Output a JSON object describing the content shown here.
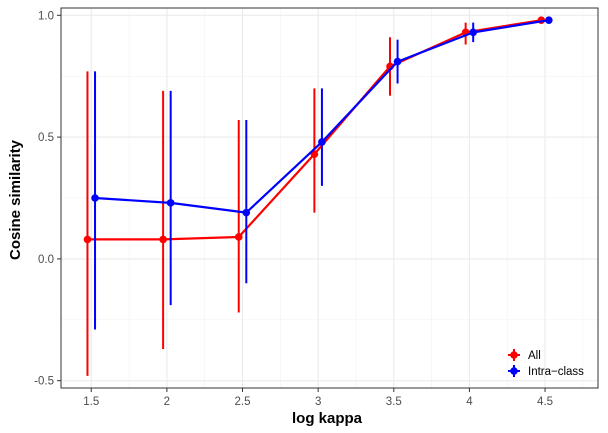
{
  "chart_data": {
    "type": "line",
    "xlabel": "log kappa",
    "ylabel": "Cosine similarity",
    "xlim": [
      1.3,
      4.85
    ],
    "ylim": [
      -0.53,
      1.03
    ],
    "x_ticks": [
      {
        "value": 1.5,
        "label": "1.5"
      },
      {
        "value": 2.0,
        "label": "2"
      },
      {
        "value": 2.5,
        "label": "2.5"
      },
      {
        "value": 3.0,
        "label": "3"
      },
      {
        "value": 3.5,
        "label": "3.5"
      },
      {
        "value": 4.0,
        "label": "4"
      },
      {
        "value": 4.5,
        "label": "4.5"
      }
    ],
    "y_ticks": [
      {
        "value": -0.5,
        "label": "-0.5"
      },
      {
        "value": 0.0,
        "label": "0.0"
      },
      {
        "value": 0.5,
        "label": "0.5"
      },
      {
        "value": 1.0,
        "label": "1.0"
      }
    ],
    "grid": true,
    "legend_position": "bottom-right",
    "series": [
      {
        "name": "All",
        "color": "#ff0000",
        "x": [
          1.5,
          2.0,
          2.5,
          3.0,
          3.5,
          4.0,
          4.5
        ],
        "y": [
          0.08,
          0.08,
          0.09,
          0.43,
          0.79,
          0.93,
          0.98
        ],
        "error_low": [
          -0.48,
          -0.37,
          -0.22,
          0.19,
          0.67,
          0.88,
          0.98
        ],
        "error_high": [
          0.77,
          0.69,
          0.57,
          0.7,
          0.91,
          0.97,
          0.98
        ]
      },
      {
        "name": "Intra−class",
        "color": "#0000ff",
        "x": [
          1.5,
          2.0,
          2.5,
          3.0,
          3.5,
          4.0,
          4.5
        ],
        "y": [
          0.25,
          0.23,
          0.19,
          0.48,
          0.81,
          0.93,
          0.98
        ],
        "error_low": [
          -0.29,
          -0.19,
          -0.1,
          0.3,
          0.72,
          0.89,
          0.98
        ],
        "error_high": [
          0.77,
          0.69,
          0.57,
          0.7,
          0.9,
          0.97,
          0.98
        ]
      }
    ]
  }
}
